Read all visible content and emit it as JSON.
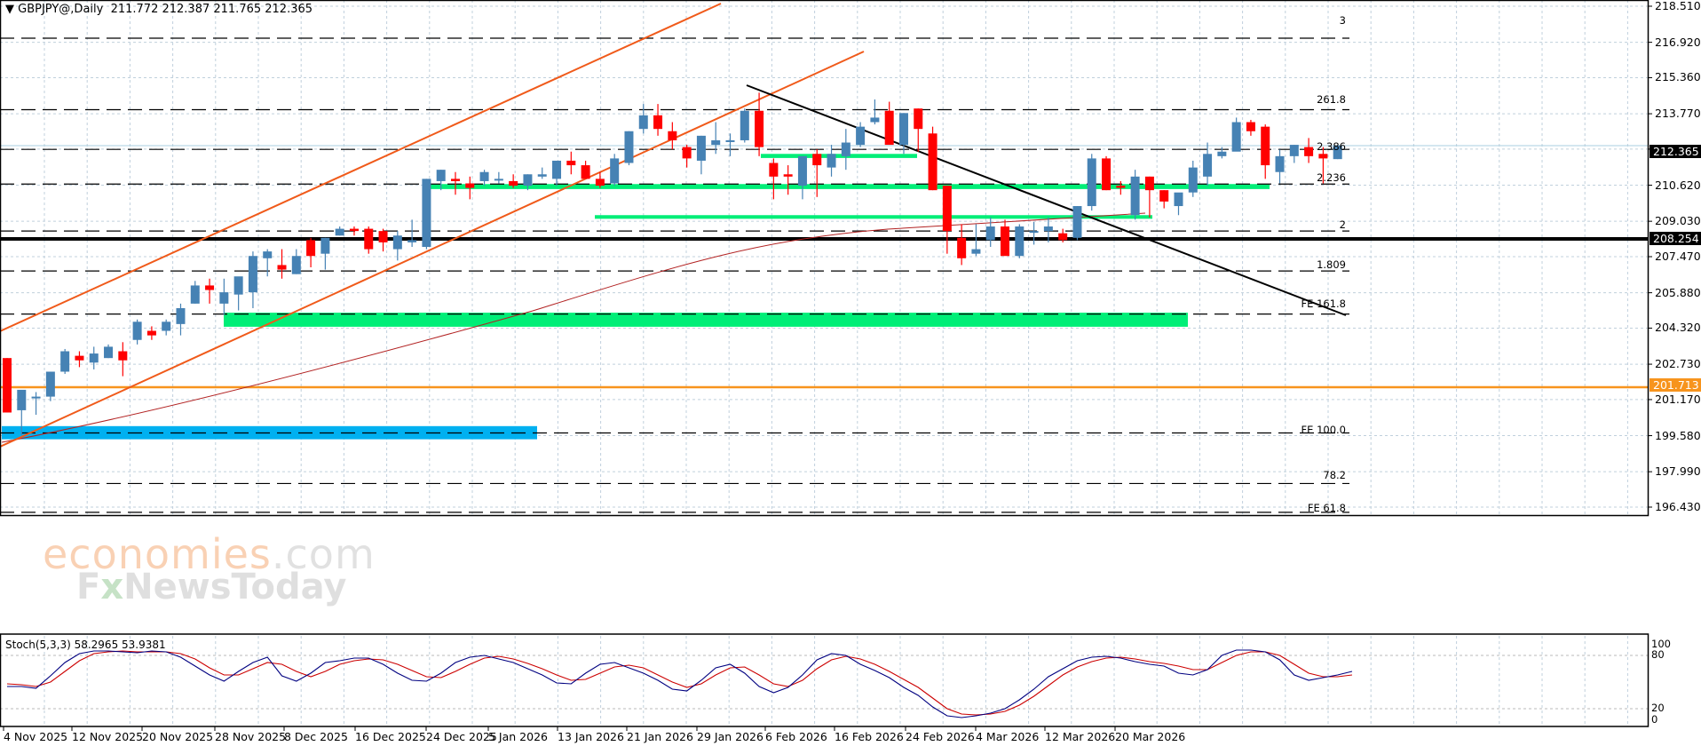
{
  "header": {
    "symbol": "GBPJPY@,Daily",
    "ohlc": "211.772 212.387 211.765 212.365",
    "title_text": "GBPJPY@,Daily  211.772 212.387 211.765 212.365"
  },
  "price_axis": {
    "ticks": [
      "218.510",
      "216.920",
      "215.360",
      "213.770",
      "212.210",
      "210.620",
      "209.030",
      "207.470",
      "205.880",
      "204.320",
      "202.730",
      "201.170",
      "199.580",
      "197.990",
      "196.430"
    ],
    "current_price_tag": "212.365",
    "black_line_tag": "208.254",
    "orange_line_tag": "201.713"
  },
  "level_labels": {
    "l3": "3",
    "l261": "261.8",
    "l2386": "2.386",
    "l2236": "2.236",
    "l2": "2",
    "l1809": "1.809",
    "fe1618": "FE 161.8",
    "fe100": "FE 100.0",
    "l782": "78.2",
    "fe618": "FE 61.8"
  },
  "stochastic": {
    "title": "Stoch(5,3,3) 58.2965 53.9381",
    "axis": [
      "100",
      "80",
      "20",
      "0"
    ]
  },
  "time_axis": [
    "4 Nov 2025",
    "12 Nov 2025",
    "20 Nov 2025",
    "28 Nov 2025",
    "8 Dec 2025",
    "16 Dec 2025",
    "24 Dec 2025",
    "5 Jan 2026",
    "13 Jan 2026",
    "21 Jan 2026",
    "29 Jan 2026",
    "6 Feb 2026",
    "16 Feb 2026",
    "24 Feb 2026",
    "4 Mar 2026",
    "12 Mar 2026",
    "20 Mar 2026"
  ],
  "watermark": {
    "line1_main": "economies",
    "line1_suffix": ".com",
    "line2_a": "F",
    "line2_x": "x",
    "line2_b": "NewsToday"
  },
  "colors": {
    "bull": "#4682b4",
    "bear": "#ff0000",
    "channel": "#f05a1a",
    "trendline": "#000000",
    "support_zone": "#00ee77",
    "low_zone": "#00b0f0",
    "ma": "#b22222",
    "orange_level": "#f7941d",
    "stoch_main": "#000080",
    "stoch_signal": "#cc0000"
  },
  "chart_data": [
    {
      "type": "candlestick",
      "title": "GBPJPY@,Daily",
      "symbol": "GBPJPY",
      "timeframe": "Daily",
      "last_ohlc": {
        "open": 211.772,
        "high": 212.387,
        "low": 211.765,
        "close": 212.365
      },
      "ylim": [
        196.43,
        218.51
      ],
      "y_ticks": [
        218.51,
        216.92,
        215.36,
        213.77,
        212.21,
        210.62,
        209.03,
        207.47,
        205.88,
        204.32,
        202.73,
        201.17,
        199.58,
        197.99,
        196.43
      ],
      "x_tick_labels": [
        "4 Nov 2025",
        "12 Nov 2025",
        "20 Nov 2025",
        "28 Nov 2025",
        "8 Dec 2025",
        "16 Dec 2025",
        "24 Dec 2025",
        "5 Jan 2026",
        "13 Jan 2026",
        "21 Jan 2026",
        "29 Jan 2026",
        "6 Feb 2026",
        "16 Feb 2026",
        "24 Feb 2026",
        "4 Mar 2026",
        "12 Mar 2026",
        "20 Mar 2026"
      ],
      "grid": true,
      "candles": [
        {
          "o": 203.0,
          "h": 203.0,
          "l": 200.6,
          "c": 200.6
        },
        {
          "o": 200.7,
          "h": 201.3,
          "l": 199.6,
          "c": 201.6
        },
        {
          "o": 201.3,
          "h": 201.5,
          "l": 200.5,
          "c": 201.3
        },
        {
          "o": 201.3,
          "h": 202.4,
          "l": 201.1,
          "c": 202.4
        },
        {
          "o": 202.4,
          "h": 203.4,
          "l": 202.3,
          "c": 203.3
        },
        {
          "o": 203.1,
          "h": 203.3,
          "l": 202.6,
          "c": 202.9
        },
        {
          "o": 202.8,
          "h": 203.5,
          "l": 202.5,
          "c": 203.2
        },
        {
          "o": 203.0,
          "h": 203.6,
          "l": 203.0,
          "c": 203.5
        },
        {
          "o": 203.3,
          "h": 203.7,
          "l": 202.2,
          "c": 202.9
        },
        {
          "o": 203.8,
          "h": 204.7,
          "l": 203.6,
          "c": 204.6
        },
        {
          "o": 204.2,
          "h": 204.4,
          "l": 203.8,
          "c": 204.0
        },
        {
          "o": 204.2,
          "h": 204.7,
          "l": 204.0,
          "c": 204.6
        },
        {
          "o": 204.5,
          "h": 205.4,
          "l": 204.0,
          "c": 205.2
        },
        {
          "o": 205.4,
          "h": 206.4,
          "l": 205.4,
          "c": 206.2
        },
        {
          "o": 206.2,
          "h": 206.5,
          "l": 205.4,
          "c": 206.0
        },
        {
          "o": 205.4,
          "h": 206.5,
          "l": 204.9,
          "c": 205.9
        },
        {
          "o": 205.8,
          "h": 206.3,
          "l": 205.1,
          "c": 206.6
        },
        {
          "o": 205.9,
          "h": 207.7,
          "l": 205.2,
          "c": 207.5
        },
        {
          "o": 207.4,
          "h": 207.8,
          "l": 206.6,
          "c": 207.7
        },
        {
          "o": 207.1,
          "h": 207.8,
          "l": 206.5,
          "c": 206.9
        },
        {
          "o": 206.7,
          "h": 207.8,
          "l": 206.7,
          "c": 207.5
        },
        {
          "o": 208.2,
          "h": 208.3,
          "l": 207.0,
          "c": 207.5
        },
        {
          "o": 207.6,
          "h": 208.3,
          "l": 206.9,
          "c": 208.3
        },
        {
          "o": 208.4,
          "h": 208.8,
          "l": 208.4,
          "c": 208.7
        },
        {
          "o": 208.7,
          "h": 208.8,
          "l": 208.4,
          "c": 208.6
        },
        {
          "o": 208.7,
          "h": 208.8,
          "l": 207.6,
          "c": 207.8
        },
        {
          "o": 208.6,
          "h": 208.7,
          "l": 207.7,
          "c": 208.1
        },
        {
          "o": 207.8,
          "h": 208.6,
          "l": 207.3,
          "c": 208.4
        },
        {
          "o": 208.1,
          "h": 209.1,
          "l": 207.9,
          "c": 208.2
        },
        {
          "o": 207.9,
          "h": 210.9,
          "l": 207.8,
          "c": 210.9
        },
        {
          "o": 210.8,
          "h": 211.3,
          "l": 210.4,
          "c": 211.3
        },
        {
          "o": 210.9,
          "h": 211.2,
          "l": 210.2,
          "c": 210.8
        },
        {
          "o": 210.7,
          "h": 211.0,
          "l": 210.0,
          "c": 210.5
        },
        {
          "o": 210.8,
          "h": 211.3,
          "l": 210.6,
          "c": 211.2
        },
        {
          "o": 210.9,
          "h": 211.2,
          "l": 210.7,
          "c": 210.9
        },
        {
          "o": 210.8,
          "h": 211.1,
          "l": 210.5,
          "c": 210.6
        },
        {
          "o": 210.6,
          "h": 211.1,
          "l": 210.4,
          "c": 211.1
        },
        {
          "o": 211.0,
          "h": 211.4,
          "l": 210.9,
          "c": 211.1
        },
        {
          "o": 210.9,
          "h": 211.6,
          "l": 210.6,
          "c": 211.7
        },
        {
          "o": 211.7,
          "h": 212.1,
          "l": 211.1,
          "c": 211.5
        },
        {
          "o": 211.5,
          "h": 211.7,
          "l": 210.9,
          "c": 210.9
        },
        {
          "o": 210.9,
          "h": 211.2,
          "l": 210.5,
          "c": 210.6
        },
        {
          "o": 210.7,
          "h": 212.0,
          "l": 210.6,
          "c": 211.8
        },
        {
          "o": 211.6,
          "h": 213.0,
          "l": 211.5,
          "c": 213.0
        },
        {
          "o": 213.1,
          "h": 214.2,
          "l": 212.9,
          "c": 213.7
        },
        {
          "o": 213.7,
          "h": 214.2,
          "l": 212.8,
          "c": 213.1
        },
        {
          "o": 213.0,
          "h": 213.4,
          "l": 212.2,
          "c": 212.6
        },
        {
          "o": 212.3,
          "h": 212.4,
          "l": 211.4,
          "c": 211.8
        },
        {
          "o": 211.7,
          "h": 212.8,
          "l": 211.1,
          "c": 212.8
        },
        {
          "o": 212.4,
          "h": 213.4,
          "l": 212.0,
          "c": 212.6
        },
        {
          "o": 212.6,
          "h": 212.9,
          "l": 211.9,
          "c": 212.6
        },
        {
          "o": 212.6,
          "h": 214.0,
          "l": 212.5,
          "c": 213.9
        },
        {
          "o": 213.9,
          "h": 214.7,
          "l": 211.9,
          "c": 212.3
        },
        {
          "o": 211.6,
          "h": 211.8,
          "l": 210.0,
          "c": 211.0
        },
        {
          "o": 211.1,
          "h": 211.5,
          "l": 210.2,
          "c": 211.0
        },
        {
          "o": 210.6,
          "h": 211.9,
          "l": 210.0,
          "c": 211.9
        },
        {
          "o": 212.0,
          "h": 212.2,
          "l": 210.1,
          "c": 211.5
        },
        {
          "o": 211.4,
          "h": 212.4,
          "l": 211.0,
          "c": 212.0
        },
        {
          "o": 211.9,
          "h": 213.1,
          "l": 211.3,
          "c": 212.5
        },
        {
          "o": 212.4,
          "h": 213.4,
          "l": 212.3,
          "c": 213.2
        },
        {
          "o": 213.4,
          "h": 214.4,
          "l": 213.3,
          "c": 213.6
        },
        {
          "o": 213.9,
          "h": 214.3,
          "l": 212.5,
          "c": 212.4
        },
        {
          "o": 212.4,
          "h": 213.8,
          "l": 212.0,
          "c": 213.8
        },
        {
          "o": 214.0,
          "h": 214.0,
          "l": 212.1,
          "c": 213.1
        },
        {
          "o": 212.9,
          "h": 213.2,
          "l": 210.4,
          "c": 210.4
        },
        {
          "o": 210.6,
          "h": 210.6,
          "l": 207.6,
          "c": 208.6
        },
        {
          "o": 208.3,
          "h": 208.9,
          "l": 207.1,
          "c": 207.4
        },
        {
          "o": 207.6,
          "h": 208.9,
          "l": 207.5,
          "c": 207.8
        },
        {
          "o": 208.2,
          "h": 209.2,
          "l": 207.9,
          "c": 208.8
        },
        {
          "o": 208.8,
          "h": 209.1,
          "l": 207.6,
          "c": 207.5
        },
        {
          "o": 207.5,
          "h": 208.9,
          "l": 207.4,
          "c": 208.8
        },
        {
          "o": 208.6,
          "h": 209.0,
          "l": 208.0,
          "c": 208.6
        },
        {
          "o": 208.6,
          "h": 209.2,
          "l": 208.1,
          "c": 208.8
        },
        {
          "o": 208.5,
          "h": 208.7,
          "l": 208.1,
          "c": 208.2
        },
        {
          "o": 208.3,
          "h": 209.7,
          "l": 208.2,
          "c": 209.7
        },
        {
          "o": 209.7,
          "h": 212.0,
          "l": 209.5,
          "c": 211.8
        },
        {
          "o": 211.8,
          "h": 211.9,
          "l": 210.4,
          "c": 210.4
        },
        {
          "o": 210.6,
          "h": 210.8,
          "l": 210.2,
          "c": 210.5
        },
        {
          "o": 209.3,
          "h": 211.3,
          "l": 209.1,
          "c": 211.0
        },
        {
          "o": 211.0,
          "h": 211.0,
          "l": 209.2,
          "c": 210.4
        },
        {
          "o": 210.4,
          "h": 210.4,
          "l": 209.6,
          "c": 209.9
        },
        {
          "o": 209.7,
          "h": 210.2,
          "l": 209.3,
          "c": 210.3
        },
        {
          "o": 210.3,
          "h": 211.7,
          "l": 210.1,
          "c": 211.4
        },
        {
          "o": 211.0,
          "h": 212.5,
          "l": 210.6,
          "c": 212.0
        },
        {
          "o": 211.9,
          "h": 212.3,
          "l": 211.8,
          "c": 212.1
        },
        {
          "o": 212.1,
          "h": 213.6,
          "l": 212.2,
          "c": 213.4
        },
        {
          "o": 213.4,
          "h": 213.5,
          "l": 212.8,
          "c": 213.0
        },
        {
          "o": 213.2,
          "h": 213.3,
          "l": 210.9,
          "c": 211.5
        },
        {
          "o": 211.2,
          "h": 212.2,
          "l": 210.7,
          "c": 211.9
        },
        {
          "o": 211.9,
          "h": 212.4,
          "l": 211.6,
          "c": 212.4
        },
        {
          "o": 212.3,
          "h": 212.7,
          "l": 211.6,
          "c": 211.9
        },
        {
          "o": 212.0,
          "h": 212.3,
          "l": 210.7,
          "c": 211.8
        },
        {
          "o": 211.77,
          "h": 212.39,
          "l": 211.77,
          "c": 212.37
        }
      ],
      "horizontal_levels": [
        {
          "price": 217.1,
          "label": "3",
          "style": "dashed"
        },
        {
          "price": 213.95,
          "label": "261.8",
          "style": "dashed"
        },
        {
          "price": 212.2,
          "label": "2.386",
          "style": "dashed"
        },
        {
          "price": 210.67,
          "label": "2.236",
          "style": "dashed"
        },
        {
          "price": 208.6,
          "label": "2",
          "style": "dashed"
        },
        {
          "price": 208.254,
          "label": "208.254",
          "style": "solid-thick-black"
        },
        {
          "price": 206.84,
          "label": "1.809",
          "style": "dashed"
        },
        {
          "price": 204.94,
          "label": "FE 161.8",
          "style": "dashed"
        },
        {
          "price": 201.713,
          "label": "201.713",
          "style": "solid-orange"
        },
        {
          "price": 199.7,
          "label": "FE 100.0",
          "style": "dashed"
        },
        {
          "price": 197.47,
          "label": "78.2",
          "style": "dashed"
        },
        {
          "price": 196.2,
          "label": "FE 61.8",
          "style": "dashed"
        }
      ],
      "zones": [
        {
          "color": "green",
          "top": 212.0,
          "bottom": 211.8,
          "x_from": "29 Jan 2026",
          "x_to": "24 Feb 2026"
        },
        {
          "color": "green",
          "top": 210.67,
          "bottom": 210.5,
          "x_from": "24 Dec 2025",
          "x_to": "end"
        },
        {
          "color": "green",
          "top": 209.3,
          "bottom": 209.15,
          "x_from": "13 Jan 2026",
          "x_to": "12 Mar 2026"
        },
        {
          "color": "green",
          "top": 205.0,
          "bottom": 204.35,
          "x_from": "28 Nov 2025",
          "x_to": "20 Mar 2026"
        },
        {
          "color": "blue",
          "top": 200.0,
          "bottom": 199.4,
          "x_from": "4 Nov 2025",
          "x_to": "5 Jan 2026"
        }
      ],
      "indicators": {
        "moving_average": "rising from ~199.7 (Nov) to ~208.6 (Mar)",
        "stochastic": {
          "params": "5,3,3",
          "main": 58.2965,
          "signal": 53.9381,
          "levels": [
            80,
            20
          ],
          "range": [
            0,
            100
          ]
        }
      }
    }
  ]
}
